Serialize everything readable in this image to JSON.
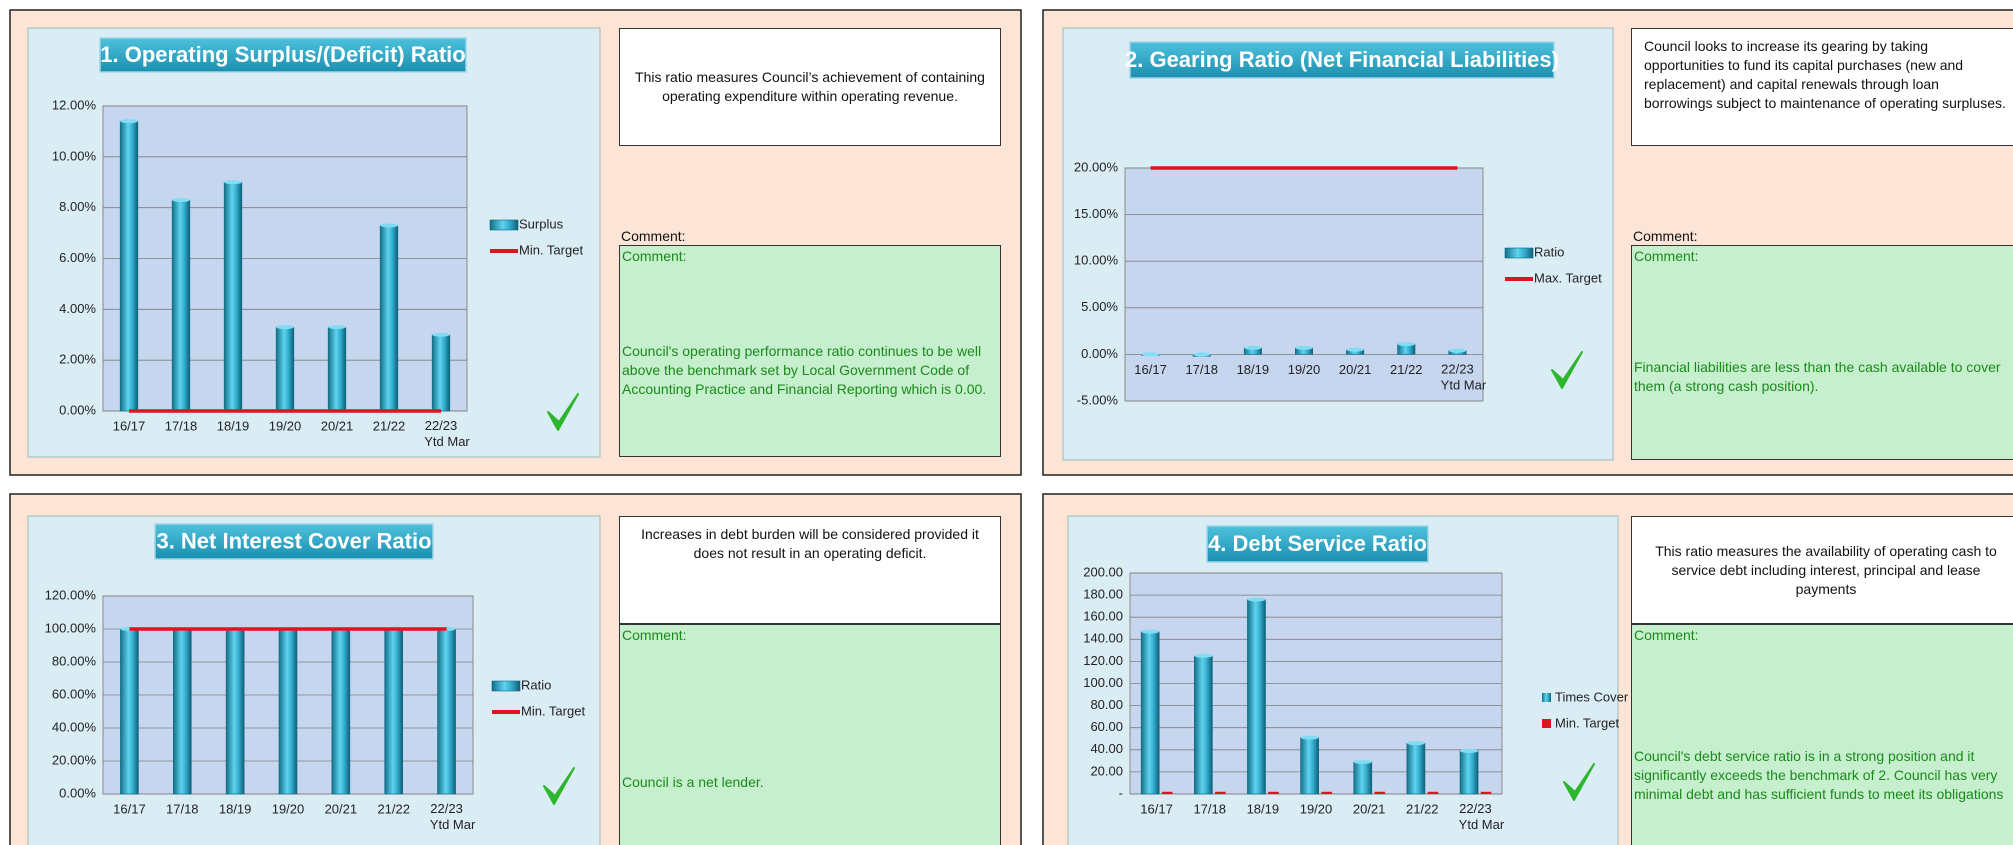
{
  "chart_data": [
    {
      "type": "bar",
      "title": "1. Operating Surplus/(Deficit) Ratio",
      "categories": [
        "16/17",
        "17/18",
        "18/19",
        "19/20",
        "20/21",
        "21/22",
        "22/23\nYtd Mar"
      ],
      "series": [
        {
          "name": "Surplus",
          "type": "bar",
          "color": "#2fa9cb",
          "values": [
            11.4,
            8.3,
            9.0,
            3.3,
            3.3,
            7.3,
            3.0
          ]
        },
        {
          "name": "Min. Target",
          "type": "line",
          "color": "#e0141e",
          "values": [
            0,
            0,
            0,
            0,
            0,
            0,
            0
          ]
        }
      ],
      "ylim": [
        0,
        12
      ],
      "yticks": [
        {
          "value": 0,
          "label": "0.00%"
        },
        {
          "value": 2,
          "label": "2.00%"
        },
        {
          "value": 4,
          "label": "4.00%"
        },
        {
          "value": 6,
          "label": "6.00%"
        },
        {
          "value": 8,
          "label": "8.00%"
        },
        {
          "value": 10,
          "label": "10.00%"
        },
        {
          "value": 12,
          "label": "12.00%"
        }
      ],
      "grid": true,
      "description": "This ratio measures Council’s achievement of containing operating expenditure within operating revenue.",
      "comment_label": "Comment:",
      "comment_header": "Comment:",
      "comment": "Council's operating performance ratio continues to be well above the benchmark set by Local Government Code of Accounting Practice and Financial Reporting which is 0.00."
    },
    {
      "type": "bar",
      "title": "2. Gearing Ratio (Net Financial Liabilities)",
      "categories": [
        "16/17",
        "17/18",
        "18/19",
        "19/20",
        "20/21",
        "21/22",
        "22/23\nYtd Mar"
      ],
      "series": [
        {
          "name": "Ratio",
          "type": "bar",
          "color": "#2fa9cb",
          "values": [
            -0.1,
            -0.2,
            0.7,
            0.7,
            0.5,
            1.1,
            0.4
          ]
        },
        {
          "name": "Max. Target",
          "type": "line",
          "color": "#e0141e",
          "values": [
            20,
            20,
            20,
            20,
            20,
            20,
            20
          ]
        }
      ],
      "ylim": [
        -5,
        20
      ],
      "yticks": [
        {
          "value": -5,
          "label": "-5.00%"
        },
        {
          "value": 0,
          "label": "0.00%"
        },
        {
          "value": 5,
          "label": "5.00%"
        },
        {
          "value": 10,
          "label": "10.00%"
        },
        {
          "value": 15,
          "label": "15.00%"
        },
        {
          "value": 20,
          "label": "20.00%"
        }
      ],
      "grid": true,
      "description": "Council looks to increase its gearing by taking opportunities to fund its capital purchases (new and replacement) and capital renewals through loan borrowings subject to maintenance of operating surpluses.",
      "comment_label": "Comment:",
      "comment_header": "Comment:",
      "comment": "Financial liabilities are less than the cash available to cover them (a strong cash position)."
    },
    {
      "type": "bar",
      "title": "3. Net Interest Cover Ratio",
      "categories": [
        "16/17",
        "17/18",
        "18/19",
        "19/20",
        "20/21",
        "21/22",
        "22/23\nYtd Mar"
      ],
      "series": [
        {
          "name": "Ratio",
          "type": "bar",
          "color": "#2fa9cb",
          "values": [
            100,
            100,
            100,
            100,
            100,
            100,
            100
          ]
        },
        {
          "name": "Min. Target",
          "type": "line",
          "color": "#e0141e",
          "values": [
            100,
            100,
            100,
            100,
            100,
            100,
            100
          ]
        }
      ],
      "ylim": [
        0,
        120
      ],
      "yticks": [
        {
          "value": 0,
          "label": "0.00%"
        },
        {
          "value": 20,
          "label": "20.00%"
        },
        {
          "value": 40,
          "label": "40.00%"
        },
        {
          "value": 60,
          "label": "60.00%"
        },
        {
          "value": 80,
          "label": "80.00%"
        },
        {
          "value": 100,
          "label": "100.00%"
        },
        {
          "value": 120,
          "label": "120.00%"
        }
      ],
      "grid": true,
      "description": "Increases in debt burden will be considered provided it does not result in an operating deficit.",
      "comment_header": "Comment:",
      "comment": "Council is a net lender."
    },
    {
      "type": "bar",
      "title": "4. Debt Service Ratio",
      "categories": [
        "16/17",
        "17/18",
        "18/19",
        "19/20",
        "20/21",
        "21/22",
        "22/23\nYtd Mar"
      ],
      "series": [
        {
          "name": "Times Cover",
          "type": "bar",
          "color": "#2fa9cb",
          "values": [
            147,
            125,
            176,
            51,
            29,
            46,
            39
          ]
        },
        {
          "name": "Min. Target",
          "type": "bar",
          "color": "#e0141e",
          "values": [
            2,
            2,
            2,
            2,
            2,
            2,
            2
          ]
        }
      ],
      "ylim": [
        0,
        200
      ],
      "yticks": [
        {
          "value": 0,
          "label": "-"
        },
        {
          "value": 20,
          "label": "20.00"
        },
        {
          "value": 40,
          "label": "40.00"
        },
        {
          "value": 60,
          "label": "60.00"
        },
        {
          "value": 80,
          "label": "80.00"
        },
        {
          "value": 100,
          "label": "100.00"
        },
        {
          "value": 120,
          "label": "120.00"
        },
        {
          "value": 140,
          "label": "140.00"
        },
        {
          "value": 160,
          "label": "160.00"
        },
        {
          "value": 180,
          "label": "180.00"
        },
        {
          "value": 200,
          "label": "200.00"
        }
      ],
      "grid": true,
      "description": "This ratio measures the availability of operating cash to service debt including interest, principal and lease payments",
      "comment_header": "Comment:",
      "comment": "Council's debt service ratio is in a strong position and it significantly exceeds the benchmark of 2. Council has very minimal debt and has sufficient funds to meet its obligations"
    }
  ]
}
